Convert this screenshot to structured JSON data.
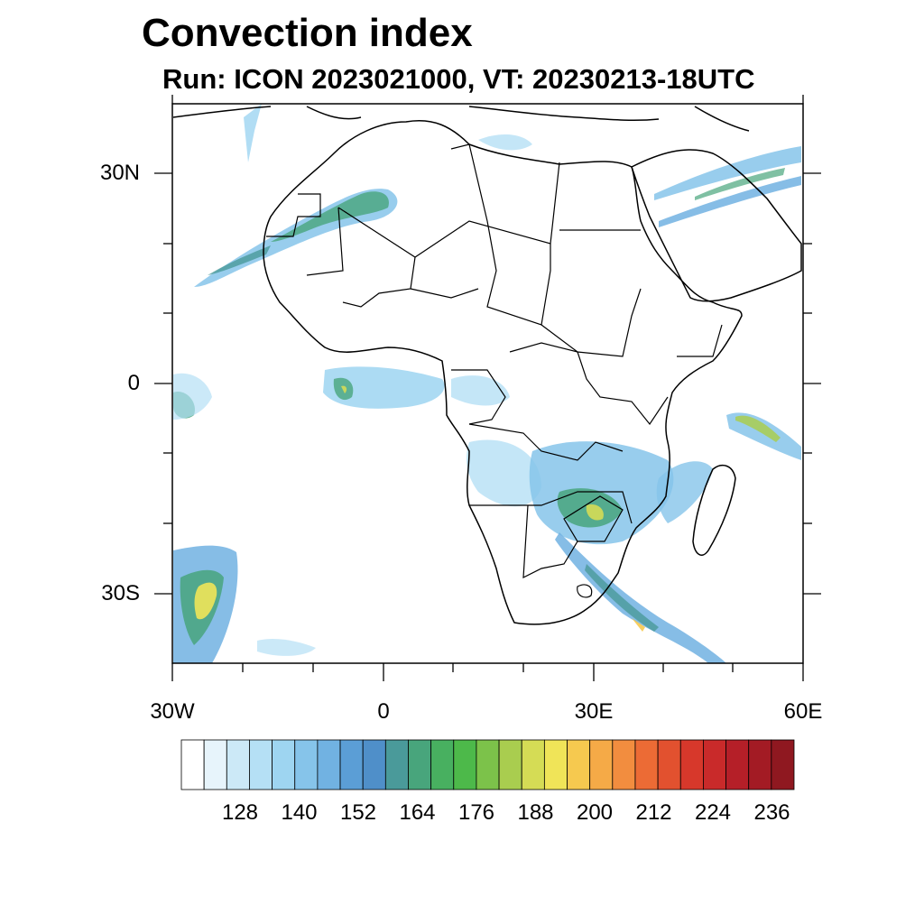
{
  "title": "Convection index",
  "subtitle": "Run: ICON 2023021000,  VT: 20230213-18UTC",
  "map": {
    "lon_range": [
      -30,
      60
    ],
    "lat_range": [
      -40,
      40
    ],
    "y_ticks": [
      "30N",
      "0",
      "30S"
    ],
    "x_ticks": [
      "30W",
      "0",
      "30E",
      "60E"
    ]
  },
  "colorbar": {
    "labels": [
      "128",
      "140",
      "152",
      "164",
      "176",
      "188",
      "200",
      "212",
      "224",
      "236"
    ],
    "colors": [
      "#ffffff",
      "#e7f4fb",
      "#cce9f7",
      "#b5e0f5",
      "#9ed5f1",
      "#86c4ea",
      "#71b2e2",
      "#5b9ed6",
      "#4f8fc9",
      "#4a9a9a",
      "#48a57c",
      "#48b060",
      "#4db94a",
      "#7cc24a",
      "#a9cd4f",
      "#d5dc55",
      "#f0e458",
      "#f6c94f",
      "#f5aa47",
      "#f28d3f",
      "#ec6b35",
      "#e2512f",
      "#d7382b",
      "#c92a2a",
      "#b51f28",
      "#a31b24",
      "#8f1820"
    ]
  }
}
